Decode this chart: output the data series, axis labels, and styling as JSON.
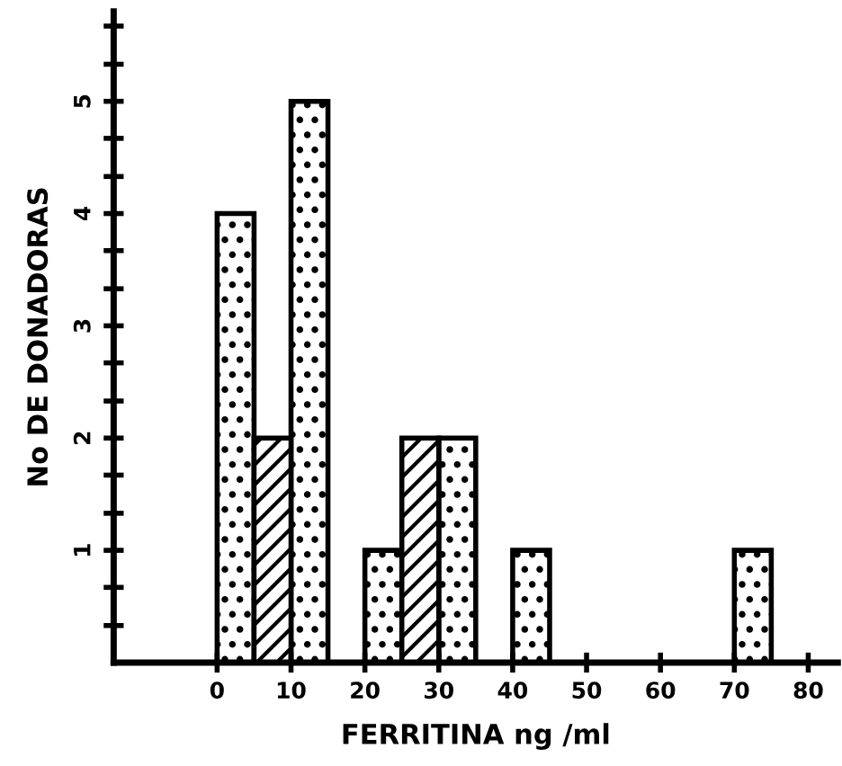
{
  "chart_data": {
    "type": "bar",
    "xlabel": "FERRITINA ng /ml",
    "ylabel": "No DE DONADORAS",
    "series": [
      {
        "color": "#000000",
        "x": [
          2.5,
          12.5,
          22.5,
          32.5,
          42.5,
          72.5
        ],
        "values": [
          4,
          5,
          1,
          2,
          1,
          1
        ]
      },
      {
        "color": "#000000",
        "x": [
          7.5,
          27.5
        ],
        "values": [
          2,
          2
        ]
      }
    ],
    "xlim": [
      -14,
      84
    ],
    "xticks": [
      0,
      10,
      20,
      30,
      40,
      50,
      60,
      70,
      80
    ],
    "ylim": [
      0,
      5.8
    ],
    "yticks": [
      {
        "value": 0.33,
        "label": null
      },
      {
        "value": 0.67,
        "label": null
      },
      1,
      {
        "value": 1.33,
        "label": null
      },
      {
        "value": 1.67,
        "label": null
      },
      2,
      {
        "value": 2.33,
        "label": null
      },
      {
        "value": 2.67,
        "label": null
      },
      3,
      {
        "value": 3.33,
        "label": null
      },
      {
        "value": 3.67,
        "label": null
      },
      4,
      {
        "value": 4.33,
        "label": null
      },
      {
        "value": 4.67,
        "label": null
      },
      5,
      {
        "value": 5.33,
        "label": null
      },
      {
        "value": 5.67,
        "label": null
      }
    ],
    "grid": false,
    "legend": false
  }
}
